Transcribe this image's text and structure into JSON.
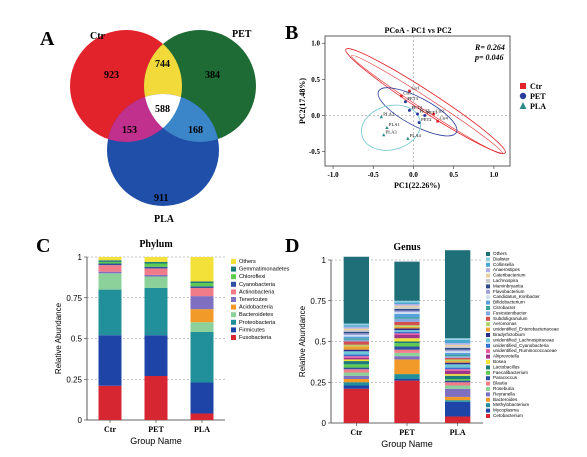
{
  "panels": {
    "A": "A",
    "B": "B",
    "C": "C",
    "D": "D"
  },
  "venn": {
    "labels": [
      "Ctr",
      "PET",
      "PLA"
    ],
    "colors": [
      "#e3232b",
      "#1f6b35",
      "#1f4fa8"
    ],
    "overlap_colors": {
      "ctr_pet": "#f2da3a",
      "ctr_pla": "#c0308c",
      "pet_pla": "#3a86c8",
      "all": "#ffffff"
    },
    "counts": {
      "ctr_only": "923",
      "pet_only": "384",
      "pla_only": "911",
      "ctr_pet": "744",
      "ctr_pla": "153",
      "pet_pla": "168",
      "all": "588"
    }
  },
  "pcoa": {
    "title": "PCoA - PC1 vs PC2",
    "stat_r": "R= 0.264",
    "stat_p": "p= 0.046",
    "xlabel": "PC1(22.26%)",
    "ylabel": "PC2(17.48%)",
    "xticks": [
      "-1.0",
      "-0.5",
      "0.0",
      "0.5",
      "1.0"
    ],
    "yticks": [
      "1.0",
      "0.5",
      "0.0",
      "-0.5"
    ],
    "legend": [
      {
        "name": "Ctr",
        "color": "#e3232b",
        "shape": "square"
      },
      {
        "name": "PET",
        "color": "#2a3c9a",
        "shape": "circle"
      },
      {
        "name": "PLA",
        "color": "#2e8b8b",
        "shape": "triangle"
      }
    ],
    "points": [
      {
        "label": "Ctr1",
        "x": -0.05,
        "y": 0.34,
        "group": "Ctr"
      },
      {
        "label": "Ctr5",
        "x": -0.15,
        "y": 0.27,
        "group": "Ctr"
      },
      {
        "label": "Ctr3",
        "x": 0.25,
        "y": 0.02,
        "group": "Ctr"
      },
      {
        "label": "Ctr4",
        "x": 0.3,
        "y": -0.08,
        "group": "Ctr"
      },
      {
        "label": "PET3",
        "x": -0.1,
        "y": 0.19,
        "group": "PET"
      },
      {
        "label": "PET4",
        "x": -0.05,
        "y": 0.07,
        "group": "PET"
      },
      {
        "label": "PET5",
        "x": 0.05,
        "y": 0.02,
        "group": "PET"
      },
      {
        "label": "PET1",
        "x": 0.14,
        "y": 0.0,
        "group": "PET"
      },
      {
        "label": "PET2",
        "x": 0.07,
        "y": -0.1,
        "group": "PET"
      },
      {
        "label": "PLA2",
        "x": -0.4,
        "y": -0.02,
        "group": "PLA"
      },
      {
        "label": "PLA1",
        "x": -0.33,
        "y": -0.17,
        "group": "PLA"
      },
      {
        "label": "PLA3",
        "x": -0.37,
        "y": -0.27,
        "group": "PLA"
      },
      {
        "label": "PLA4",
        "x": -0.07,
        "y": -0.32,
        "group": "PLA"
      }
    ]
  },
  "chart_data": [
    {
      "type": "bar",
      "title": "Phylum",
      "xlabel": "Group Name",
      "ylabel": "Relative Abundance",
      "yticks": [
        "0",
        "0.25",
        "0.5",
        "0.75",
        "1"
      ],
      "ylim": [
        0,
        1
      ],
      "categories": [
        "Ctr",
        "PET",
        "PLA"
      ],
      "series": [
        {
          "name": "Fusobacteria",
          "color": "#d62631",
          "values": [
            0.21,
            0.27,
            0.04
          ]
        },
        {
          "name": "Firmicutes",
          "color": "#1f44a8",
          "values": [
            0.31,
            0.25,
            0.19
          ]
        },
        {
          "name": "Proteobacteria",
          "color": "#21909a",
          "values": [
            0.28,
            0.29,
            0.31
          ]
        },
        {
          "name": "Bacteroidetes",
          "color": "#8dd19a",
          "values": [
            0.1,
            0.07,
            0.06
          ]
        },
        {
          "name": "Acidobacteria",
          "color": "#f19a2a",
          "values": [
            0.0,
            0.0,
            0.08
          ]
        },
        {
          "name": "Tenericutes",
          "color": "#7f6fc0",
          "values": [
            0.01,
            0.01,
            0.08
          ]
        },
        {
          "name": "Actinobacteria",
          "color": "#f07c8a",
          "values": [
            0.04,
            0.04,
            0.05
          ]
        },
        {
          "name": "Cyanobacteria",
          "color": "#2d4fa0",
          "values": [
            0.01,
            0.01,
            0.01
          ]
        },
        {
          "name": "Chloroflexi",
          "color": "#5ecb4e",
          "values": [
            0.01,
            0.02,
            0.02
          ]
        },
        {
          "name": "Gemmatimonadetes",
          "color": "#1c7a7a",
          "values": [
            0.01,
            0.01,
            0.01
          ]
        },
        {
          "name": "Others",
          "color": "#f3e13a",
          "values": [
            0.02,
            0.03,
            0.15
          ]
        }
      ]
    },
    {
      "type": "bar",
      "title": "Genus",
      "xlabel": "Group Name",
      "ylabel": "Relative Abundance",
      "yticks": [
        "0",
        "0.25",
        "0.5",
        "0.75",
        "1"
      ],
      "ylim": [
        0,
        1
      ],
      "categories": [
        "Ctr",
        "PET",
        "PLA"
      ],
      "series": [
        {
          "name": "Cetobacterium",
          "color": "#d62631",
          "values": [
            0.21,
            0.26,
            0.04
          ]
        },
        {
          "name": "Mycoplasma",
          "color": "#1f44a8",
          "values": [
            0.02,
            0.01,
            0.09
          ]
        },
        {
          "name": "Methylobacterium",
          "color": "#21909a",
          "values": [
            0.02,
            0.03,
            0.01
          ]
        },
        {
          "name": "Bacteroides",
          "color": "#f19a2a",
          "values": [
            0.02,
            0.09,
            0.02
          ]
        },
        {
          "name": "Reyranella",
          "color": "#7f6fc0",
          "values": [
            0.02,
            0.02,
            0.05
          ]
        },
        {
          "name": "Roseburia",
          "color": "#8dd19a",
          "values": [
            0.02,
            0.02,
            0.02
          ]
        },
        {
          "name": "Blautia",
          "color": "#f07c8a",
          "values": [
            0.02,
            0.02,
            0.02
          ]
        },
        {
          "name": "Paracoccus",
          "color": "#2d4fa0",
          "values": [
            0.01,
            0.02,
            0.01
          ]
        },
        {
          "name": "Faecalibacterium",
          "color": "#5ecb4e",
          "values": [
            0.02,
            0.02,
            0.01
          ]
        },
        {
          "name": "Lactobacillus",
          "color": "#1c7a7a",
          "values": [
            0.02,
            0.01,
            0.02
          ]
        },
        {
          "name": "Bosea",
          "color": "#f3e13a",
          "values": [
            0.01,
            0.02,
            0.01
          ]
        },
        {
          "name": "Aliiprevotella",
          "color": "#a0368a",
          "values": [
            0.01,
            0.02,
            0.02
          ]
        },
        {
          "name": "unidentified_Ruminococcaceae",
          "color": "#e85aa0",
          "values": [
            0.01,
            0.01,
            0.01
          ]
        },
        {
          "name": "unidentified_Cyanobacteria",
          "color": "#3a6fd0",
          "values": [
            0.01,
            0.01,
            0.01
          ]
        },
        {
          "name": "unidentified_Lachnospiraceae",
          "color": "#6ec8d6",
          "values": [
            0.02,
            0.01,
            0.02
          ]
        },
        {
          "name": "Bradyrhizobium",
          "color": "#2b2b8a",
          "values": [
            0.01,
            0.01,
            0.01
          ]
        },
        {
          "name": "unidentified_Enterobacteriaceae",
          "color": "#f0a030",
          "values": [
            0.02,
            0.01,
            0.01
          ]
        },
        {
          "name": "Aeromonas",
          "color": "#b0d66a",
          "values": [
            0.01,
            0.01,
            0.01
          ]
        },
        {
          "name": "Subdoligranulum",
          "color": "#d64f4f",
          "values": [
            0.02,
            0.02,
            0.01
          ]
        },
        {
          "name": "Fusicatenibacter",
          "color": "#8aa6e0",
          "values": [
            0.01,
            0.02,
            0.01
          ]
        },
        {
          "name": "Citrobacter",
          "color": "#3aa0a0",
          "values": [
            0.01,
            0.01,
            0.01
          ]
        },
        {
          "name": "Bifidobacterium",
          "color": "#5aa0e0",
          "values": [
            0.01,
            0.02,
            0.01
          ]
        },
        {
          "name": "Candidatus_Koribacter",
          "color": "#d0e0f0",
          "values": [
            0.01,
            0.01,
            0.01
          ]
        },
        {
          "name": "Flavobacterium",
          "color": "#a0a0d8",
          "values": [
            0.01,
            0.01,
            0.01
          ]
        },
        {
          "name": "Marvinbryantia",
          "color": "#2a4a8a",
          "values": [
            0.01,
            0.01,
            0.01
          ]
        },
        {
          "name": "Lachnospira",
          "color": "#c8c8c8",
          "values": [
            0.01,
            0.01,
            0.01
          ]
        },
        {
          "name": "Cateribacterium",
          "color": "#e8d0a0",
          "values": [
            0.01,
            0.01,
            0.01
          ]
        },
        {
          "name": "Anaerostipes",
          "color": "#b0b0e8",
          "values": [
            0.01,
            0.01,
            0.01
          ]
        },
        {
          "name": "Collinsella",
          "color": "#4aa8d0",
          "values": [
            0.01,
            0.01,
            0.02
          ]
        },
        {
          "name": "Dialister",
          "color": "#90d0e0",
          "values": [
            0.01,
            0.01,
            0.01
          ]
        },
        {
          "name": "Others",
          "color": "#1e6f78",
          "values": [
            0.41,
            0.24,
            0.54
          ]
        }
      ]
    }
  ]
}
